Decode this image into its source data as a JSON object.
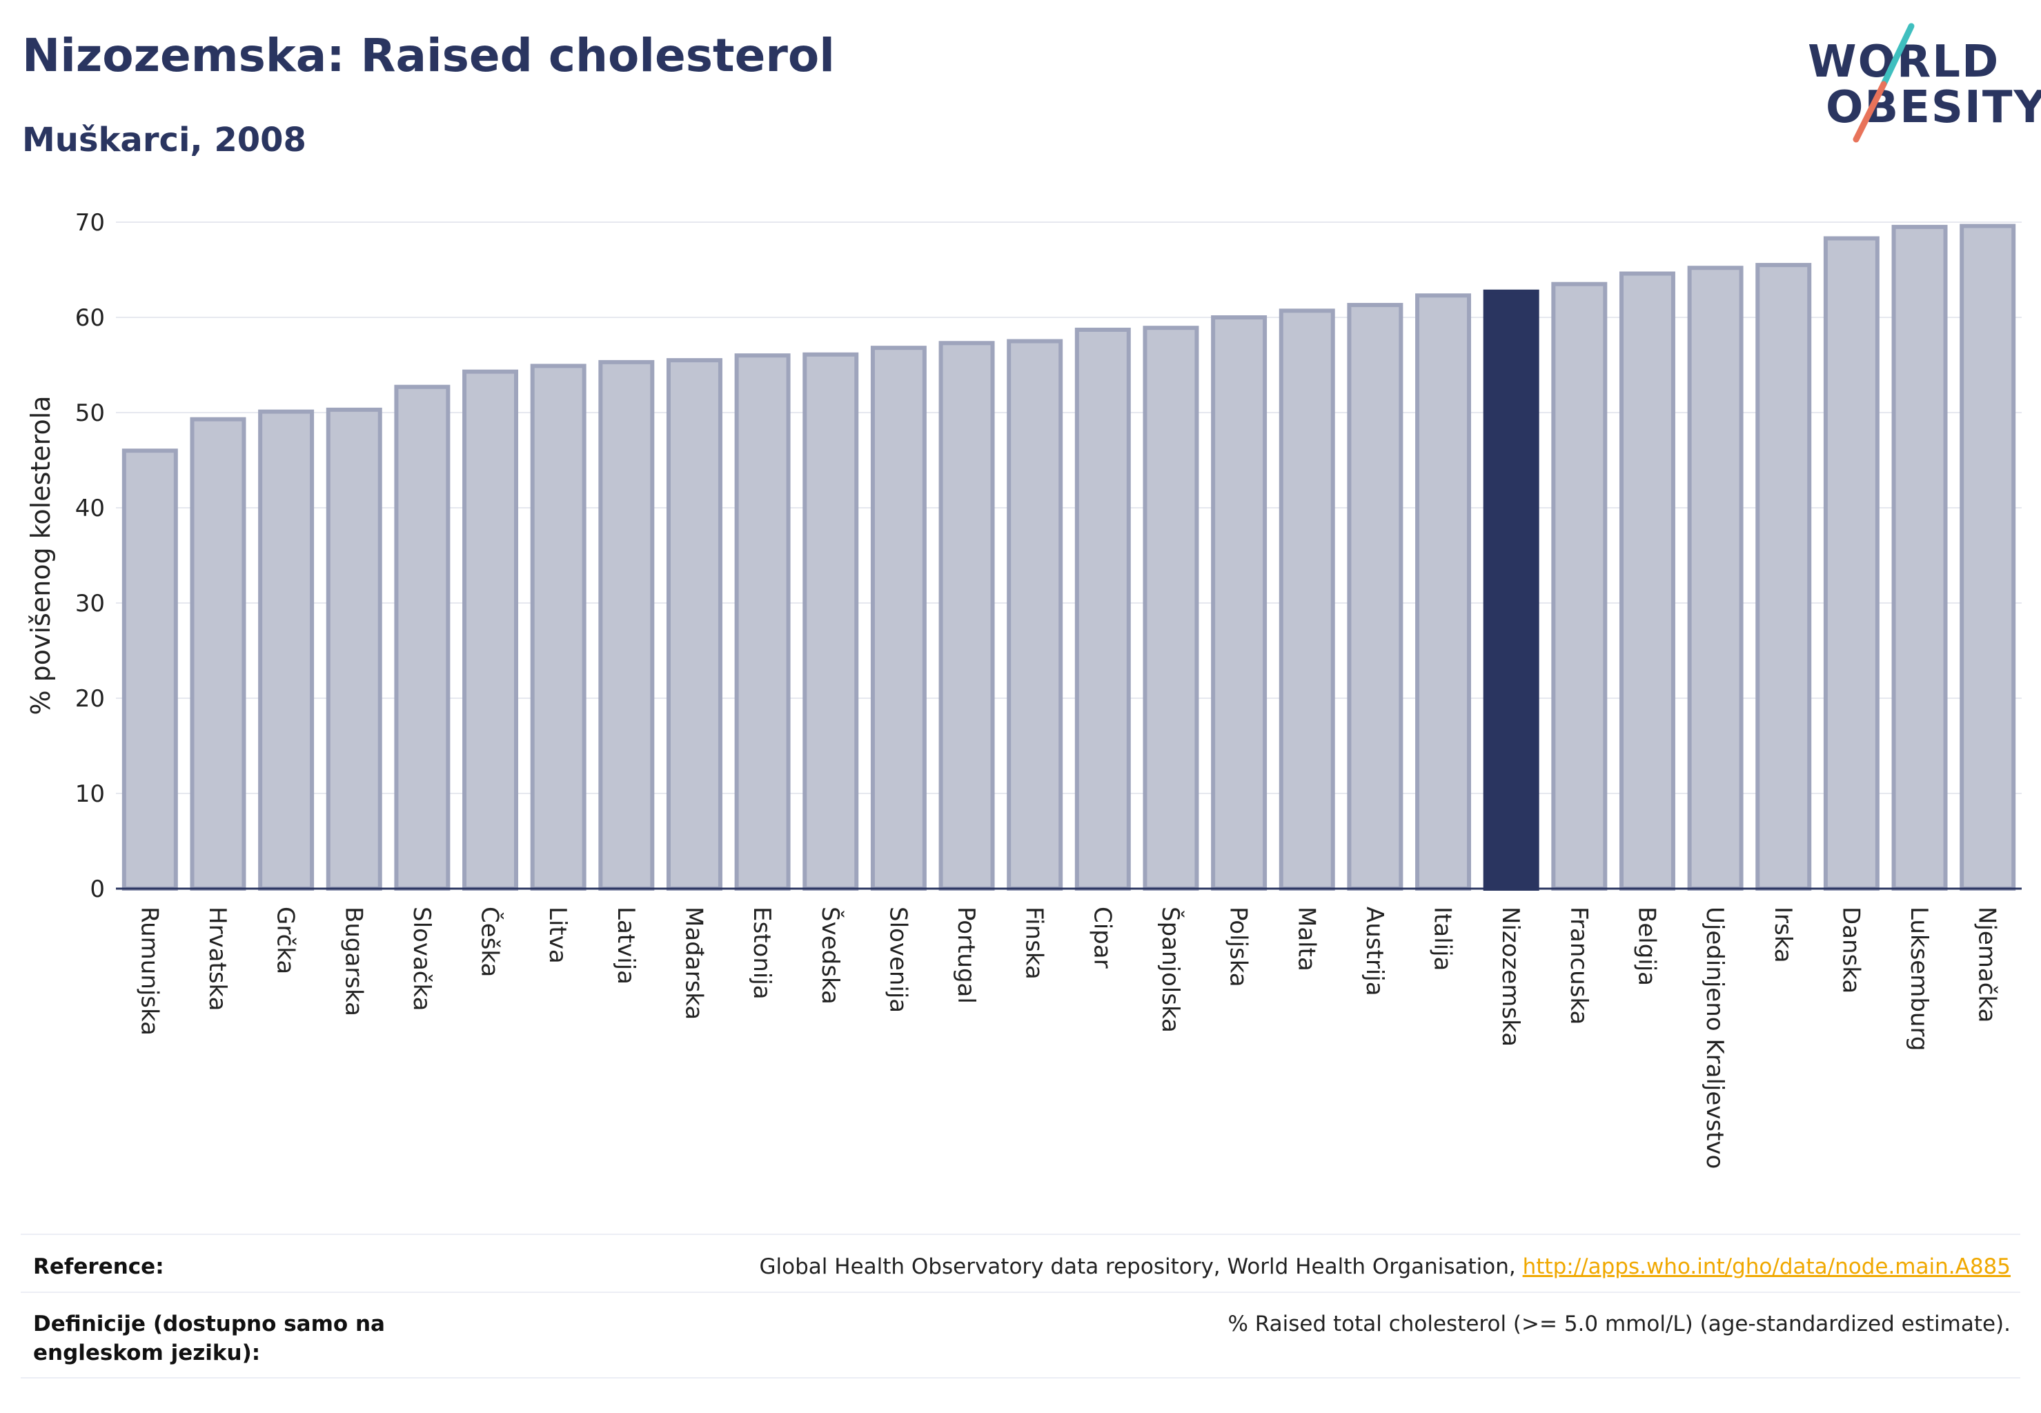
{
  "header": {
    "title": "Nizozemska: Raised cholesterol",
    "subtitle": "Muškarci, 2008"
  },
  "logo": {
    "line1": "WORLD",
    "line2": "OBESITY",
    "slash_colors": [
      "#3fbfbf",
      "#e8735a"
    ]
  },
  "colors": {
    "bar_default": "#c0c4d2",
    "bar_border": "#9ea4bc",
    "bar_highlight": "#2a3560",
    "text": "#2a3560",
    "link": "#f0a800"
  },
  "chart_data": {
    "type": "bar",
    "ylabel": "% povišenog kolesterola",
    "ylim": [
      0,
      70
    ],
    "yticks": [
      0,
      10,
      20,
      30,
      40,
      50,
      60,
      70
    ],
    "grid": true,
    "highlight": "Nizozemska",
    "categories": [
      "Rumunjska",
      "Hrvatska",
      "Grčka",
      "Bugarska",
      "Slovačka",
      "Češka",
      "Litva",
      "Latvija",
      "Mađarska",
      "Estonija",
      "Švedska",
      "Slovenija",
      "Portugal",
      "Finska",
      "Cipar",
      "Španjolska",
      "Poljska",
      "Malta",
      "Austrija",
      "Italija",
      "Nizozemska",
      "Francuska",
      "Belgija",
      "Ujedinjeno Kraljevstvo",
      "Irska",
      "Danska",
      "Luksemburg",
      "Njemačka"
    ],
    "values": [
      46.0,
      49.3,
      50.1,
      50.3,
      52.7,
      54.3,
      54.9,
      55.3,
      55.5,
      56.0,
      56.1,
      56.8,
      57.3,
      57.5,
      58.7,
      58.9,
      60.0,
      60.7,
      61.3,
      62.3,
      62.7,
      63.5,
      64.6,
      65.2,
      65.5,
      68.3,
      69.5,
      69.6
    ]
  },
  "footer": {
    "reference_label": "Reference:",
    "reference_text": "Global Health Observatory data repository, World Health Organisation, ",
    "reference_link": "http://apps.who.int/gho/data/node.main.A885",
    "definition_label": "Definicije (dostupno samo na engleskom jeziku):",
    "definition_text": "% Raised total cholesterol (>= 5.0 mmol/L) (age-standardized estimate)."
  }
}
